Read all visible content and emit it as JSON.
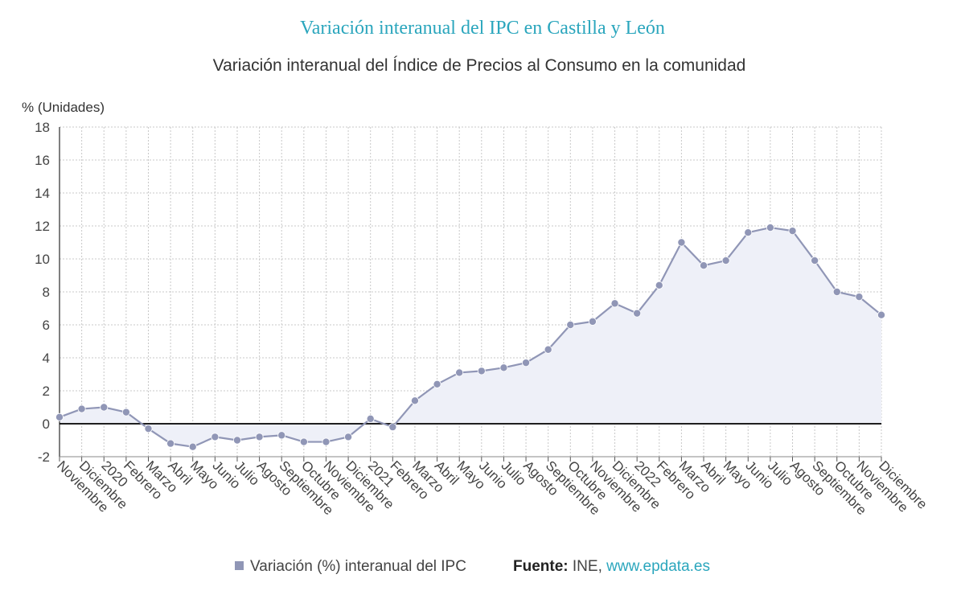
{
  "title": "Variación interanual del IPC en Castilla y León",
  "subtitle": "Variación interanual del Índice de Precios al Consumo en la comunidad",
  "footer": {
    "legend_label": "Variación (%) interanual del IPC",
    "source_label": "Fuente:",
    "source_name": "INE,",
    "source_link": "www.epdata.es"
  },
  "colors": {
    "title": "#2ba6bd",
    "series": "#9096b6",
    "area_fill": "#eef0f8",
    "grid": "#c8c8c8",
    "zero_line": "#000000"
  },
  "chart_data": {
    "type": "area",
    "ylabel": "% (Unidades)",
    "ylim": [
      -2,
      18
    ],
    "yticks": [
      -2,
      0,
      2,
      4,
      6,
      8,
      10,
      12,
      14,
      16,
      18
    ],
    "grid": true,
    "legend_position": "bottom",
    "categories": [
      "Noviembre",
      "Diciembre",
      "2020",
      "Febrero",
      "Marzo",
      "Abril",
      "Mayo",
      "Junio",
      "Julio",
      "Agosto",
      "Septiembre",
      "Octubre",
      "Noviembre",
      "Diciembre",
      "2021",
      "Febrero",
      "Marzo",
      "Abril",
      "Mayo",
      "Junio",
      "Julio",
      "Agosto",
      "Septiembre",
      "Octubre",
      "Noviembre",
      "Diciembre",
      "2022",
      "Febrero",
      "Marzo",
      "Abril",
      "Mayo",
      "Junio",
      "Julio",
      "Agosto",
      "Septiembre",
      "Octubre",
      "Noviembre",
      "Diciembre"
    ],
    "series": [
      {
        "name": "Variación (%) interanual del IPC",
        "values": [
          0.4,
          0.9,
          1.0,
          0.7,
          -0.3,
          -1.2,
          -1.4,
          -0.8,
          -1.0,
          -0.8,
          -0.7,
          -1.1,
          -1.1,
          -0.8,
          0.3,
          -0.2,
          1.4,
          2.4,
          3.1,
          3.2,
          3.4,
          3.7,
          4.5,
          6.0,
          6.2,
          7.3,
          6.7,
          8.4,
          11.0,
          9.6,
          9.9,
          11.6,
          11.9,
          11.7,
          9.9,
          8.0,
          7.7,
          6.6
        ]
      }
    ]
  }
}
